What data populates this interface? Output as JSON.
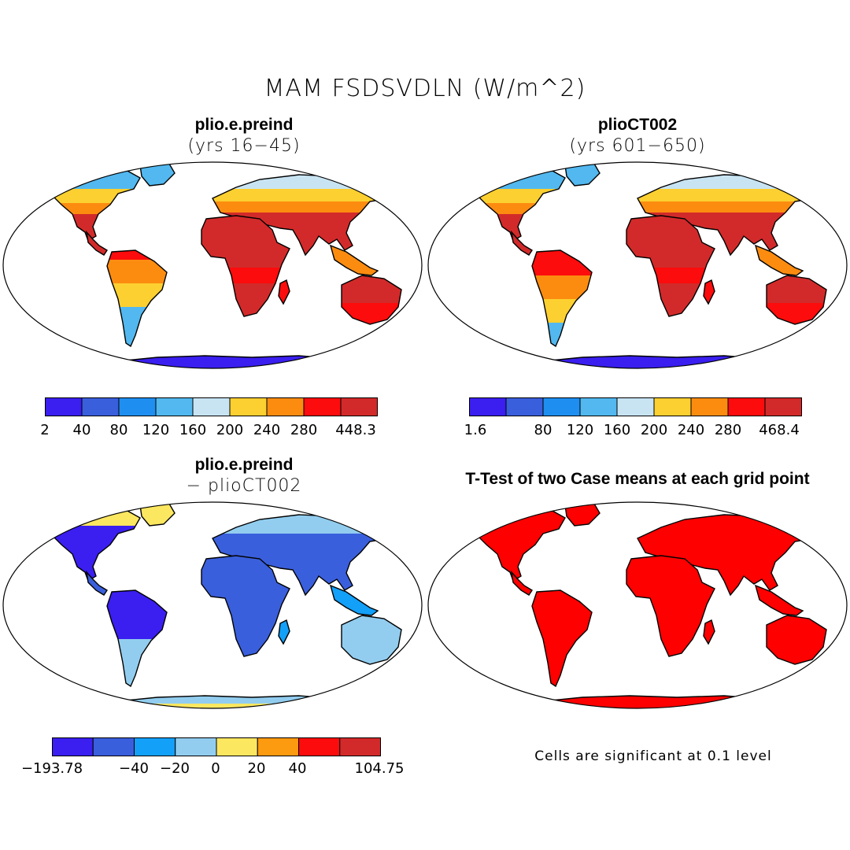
{
  "title": "MAM FSDSVDLN (W/m^2)",
  "panels": [
    {
      "id": "p1",
      "title": "plio.e.preind",
      "subtitle": "(yrs 16−45)"
    },
    {
      "id": "p2",
      "title": "plioCT002",
      "subtitle": "(yrs 601−650)"
    },
    {
      "id": "p3",
      "title": "plio.e.preind",
      "subtitle": "− plioCT002"
    },
    {
      "id": "p4",
      "title": "T-Test of two Case means at each grid point",
      "subtitle": ""
    }
  ],
  "colorbars": [
    {
      "id": "cb1",
      "colors": [
        "#3a1ff0",
        "#3a5fdc",
        "#1e8ff0",
        "#52b8ef",
        "#c8e4f3",
        "#fcd030",
        "#fc8c10",
        "#fc0c0c",
        "#d22a2a"
      ],
      "labels": [
        "2",
        "40",
        "80",
        "120",
        "160",
        "200",
        "240",
        "280",
        "448.3"
      ]
    },
    {
      "id": "cb2",
      "colors": [
        "#3a1ff0",
        "#3a5fdc",
        "#1e8ff0",
        "#52b8ef",
        "#c8e4f3",
        "#fcd030",
        "#fc8c10",
        "#fc0c0c",
        "#d22a2a"
      ],
      "labels": [
        "1.6",
        "80",
        "120",
        "160",
        "200",
        "240",
        "280",
        "468.4"
      ]
    },
    {
      "id": "cb3",
      "colors": [
        "#3a1ff0",
        "#3a5fdc",
        "#12a0f8",
        "#92cdef",
        "#fce760",
        "#fc9a10",
        "#fc0c0c",
        "#d22a2a"
      ],
      "labels": [
        "−193.78",
        "−40",
        "−20",
        "0",
        "20",
        "40",
        "104.75"
      ]
    }
  ],
  "significance_note": "Cells are significant at 0.1 level",
  "map_colors": {
    "ocean": "#ffffff",
    "coast": "#000000",
    "frame": "#000000",
    "significant": "#ff0000"
  }
}
